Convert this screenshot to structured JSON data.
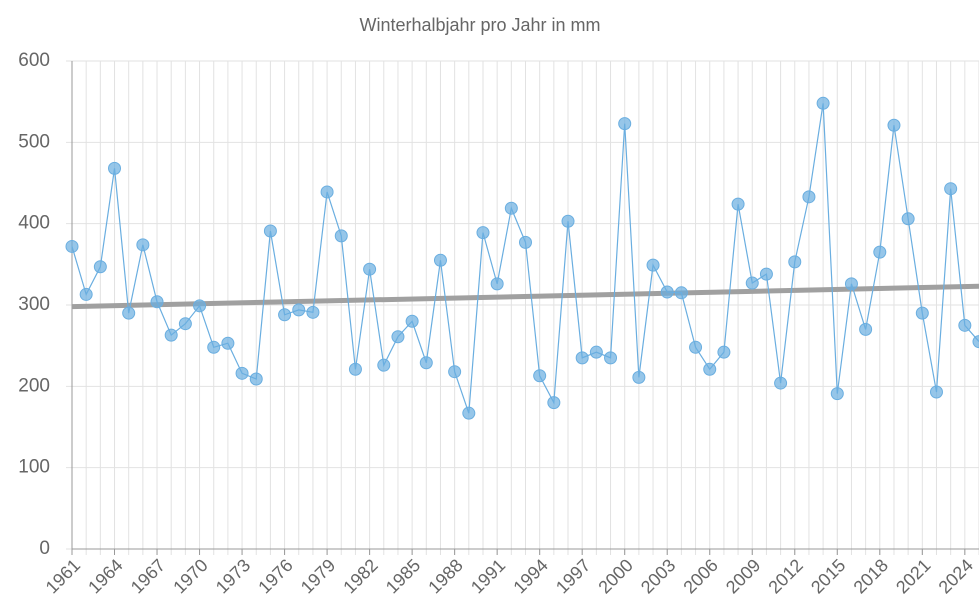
{
  "chart_data": {
    "type": "line",
    "title": "Winterhalbjahr pro Jahr in mm",
    "x": [
      1961,
      1962,
      1963,
      1964,
      1965,
      1966,
      1967,
      1968,
      1969,
      1970,
      1971,
      1972,
      1973,
      1974,
      1975,
      1976,
      1977,
      1978,
      1979,
      1980,
      1981,
      1982,
      1983,
      1984,
      1985,
      1986,
      1987,
      1988,
      1989,
      1990,
      1991,
      1992,
      1993,
      1994,
      1995,
      1996,
      1997,
      1998,
      1999,
      2000,
      2001,
      2002,
      2003,
      2004,
      2005,
      2006,
      2007,
      2008,
      2009,
      2010,
      2011,
      2012,
      2013,
      2014,
      2015,
      2016,
      2017,
      2018,
      2019,
      2020,
      2021,
      2022,
      2023,
      2024,
      2025
    ],
    "series": [
      {
        "color": "#6aaee0",
        "values": [
          372,
          313,
          347,
          468,
          290,
          374,
          304,
          263,
          277,
          299,
          248,
          253,
          216,
          209,
          391,
          288,
          294,
          291,
          439,
          385,
          221,
          344,
          226,
          261,
          280,
          229,
          355,
          218,
          167,
          389,
          326,
          419,
          377,
          213,
          180,
          403,
          235,
          242,
          235,
          523,
          211,
          349,
          316,
          315,
          248,
          221,
          242,
          424,
          327,
          338,
          204,
          353,
          433,
          548,
          191,
          326,
          270,
          365,
          521,
          406,
          290,
          193,
          443,
          275,
          255
        ]
      }
    ],
    "trend": {
      "x": [
        1961,
        2025
      ],
      "values": [
        298,
        323
      ],
      "color": "#a0a0a0"
    },
    "xlim": [
      1961,
      2025
    ],
    "xticks": [
      1961,
      1964,
      1967,
      1970,
      1973,
      1976,
      1979,
      1982,
      1985,
      1988,
      1991,
      1994,
      1997,
      2000,
      2003,
      2006,
      2009,
      2012,
      2015,
      2018,
      2021,
      2024
    ],
    "ylim": [
      0,
      600
    ],
    "yticks": [
      0,
      100,
      200,
      300,
      400,
      500,
      600
    ],
    "grid": true
  }
}
